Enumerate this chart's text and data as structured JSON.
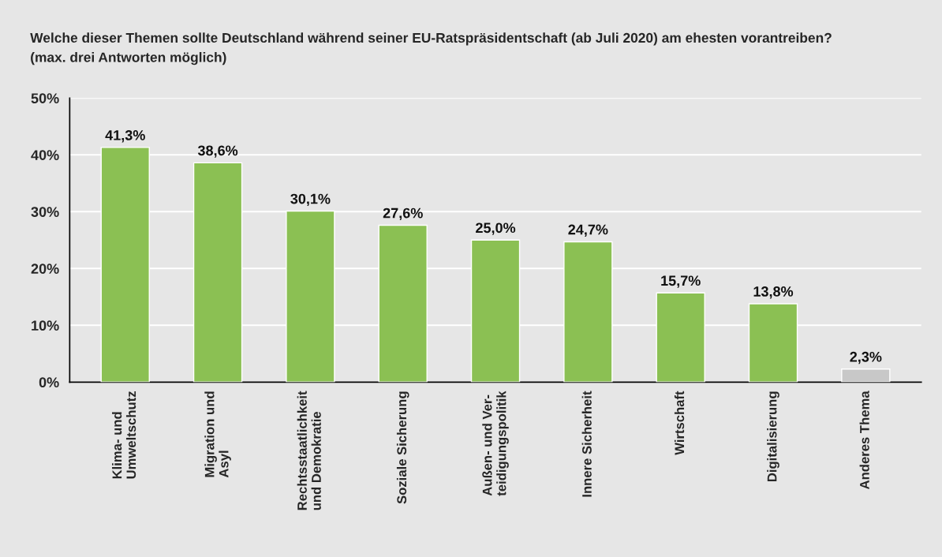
{
  "chart_data": {
    "type": "bar",
    "title": "Welche dieser Themen sollte Deutschland während seiner EU-Ratspräsidentschaft (ab Juli 2020) am ehesten vorantreiben?",
    "subtitle": "(max. drei Antworten möglich)",
    "categories": [
      "Klima- und\nUmweltschutz",
      "Migration und\nAsyl",
      "Rechtsstaatlichkeit\nund Demokratie",
      "Soziale Sicherung",
      "Außen- und Ver-\nteidigungspolitik",
      "Innere Sicherheit",
      "Wirtschaft",
      "Digitalisierung",
      "Anderes Thema"
    ],
    "values": [
      41.3,
      38.6,
      30.1,
      27.6,
      25.0,
      24.7,
      15.7,
      13.8,
      2.3
    ],
    "colors": [
      "#8bc053",
      "#8bc053",
      "#8bc053",
      "#8bc053",
      "#8bc053",
      "#8bc053",
      "#8bc053",
      "#8bc053",
      "#c8c8c8"
    ],
    "value_labels": [
      "41,3%",
      "38,6%",
      "30,1%",
      "27,6%",
      "25,0%",
      "24,7%",
      "15,7%",
      "13,8%",
      "2,3%"
    ],
    "ylim": [
      0,
      50
    ],
    "yticks": [
      {
        "value": 0,
        "label": "0%"
      },
      {
        "value": 10,
        "label": "10%"
      },
      {
        "value": 20,
        "label": "20%"
      },
      {
        "value": 30,
        "label": "30%"
      },
      {
        "value": 40,
        "label": "40%"
      },
      {
        "value": 50,
        "label": "50%"
      }
    ],
    "grid": "y"
  }
}
